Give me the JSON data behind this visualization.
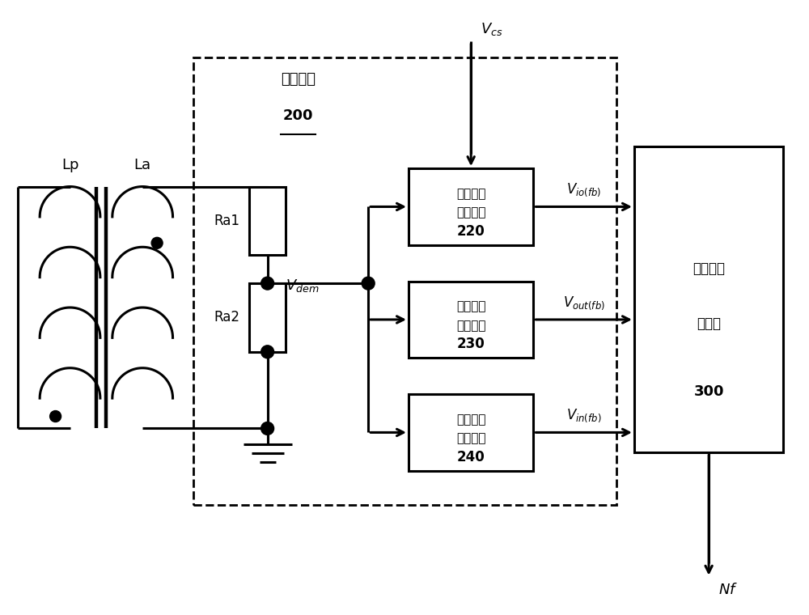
{
  "bg_color": "#ffffff",
  "line_color": "#000000",
  "lw": 2.2,
  "dashed_lw": 2.0,
  "labels": {
    "Lp": "Lp",
    "La": "La",
    "Ra1": "Ra1",
    "Ra2": "Ra2",
    "Vdem": "$V_{dem}$",
    "Vcs": "$V_{cs}$",
    "sample_unit": "采样单元",
    "sample_unit_num": "200",
    "block220_line1": "输出电流",
    "block220_line2": "采样模块",
    "block220_num": "220",
    "block230_line1": "输出电压",
    "block230_line2": "采样模块",
    "block230_num": "230",
    "block240_line1": "输入电压",
    "block240_line2": "采样模块",
    "block240_num": "240",
    "controller_line1": "谷底锁定",
    "controller_line2": "控制器",
    "controller_num": "300",
    "Vio": "$V_{io(fb)}$",
    "Vout": "$V_{out(fb)}$",
    "Vin": "$V_{in(fb)}$",
    "Nf": "$Nf$"
  },
  "figsize": [
    10.0,
    7.6
  ],
  "dpi": 100
}
